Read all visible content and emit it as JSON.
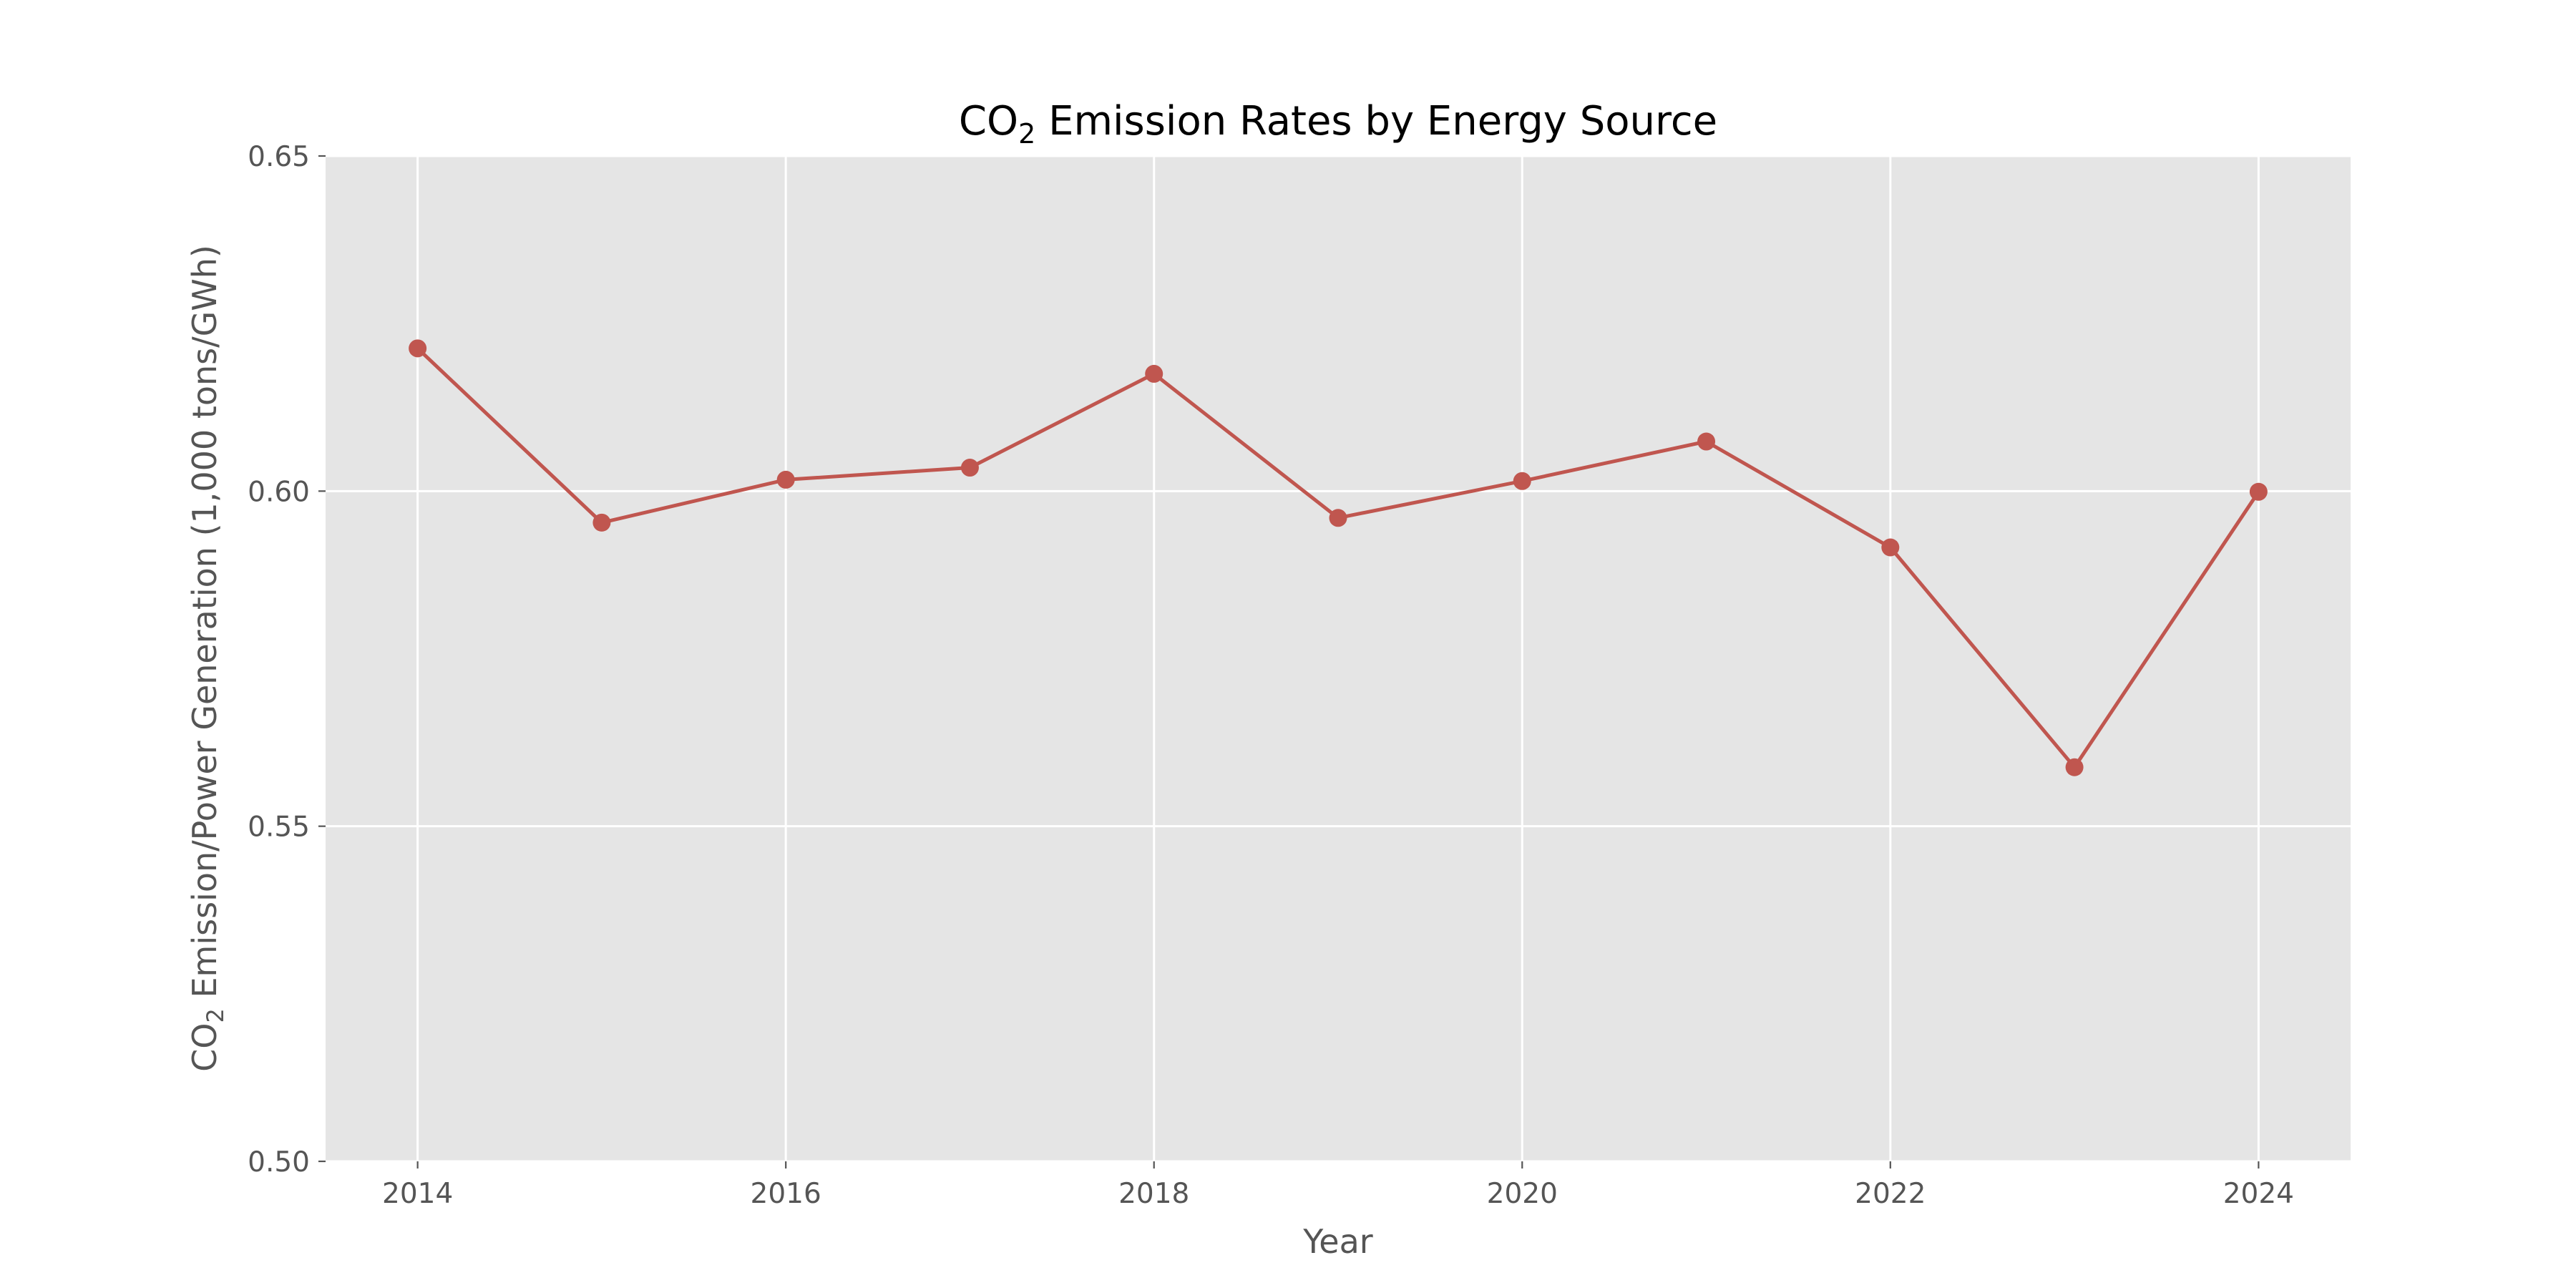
{
  "chart_data": {
    "type": "line",
    "title": "CO₂ Emission Rates by Energy Source",
    "title_main": "CO",
    "title_sub": "2",
    "title_rest": " Emission Rates by Energy Source",
    "xlabel": "Year",
    "ylabel": "CO₂ Emission/Power Generation (1,000 tons/GWh)",
    "ylabel_main": "CO",
    "ylabel_sub": "2",
    "ylabel_rest": " Emission/Power Generation (1,000 tons/GWh)",
    "x": [
      2014,
      2015,
      2016,
      2017,
      2018,
      2019,
      2020,
      2021,
      2022,
      2023,
      2024
    ],
    "series": [
      {
        "values": [
          0.6213,
          0.5953,
          0.6017,
          0.6035,
          0.6175,
          0.596,
          0.6015,
          0.6074,
          0.5916,
          0.5588,
          0.5999
        ],
        "color": "#c0564f"
      }
    ],
    "xlim": [
      2013.5,
      2024.5
    ],
    "ylim": [
      0.5,
      0.65
    ],
    "xticks": [
      2014,
      2016,
      2018,
      2020,
      2022,
      2024
    ],
    "xtick_labels": [
      "2014",
      "2016",
      "2018",
      "2020",
      "2022",
      "2024"
    ],
    "yticks": [
      0.5,
      0.55,
      0.6,
      0.65
    ],
    "ytick_labels": [
      "0.50",
      "0.55",
      "0.60",
      "0.65"
    ],
    "grid": true,
    "legend": "none",
    "plot_background": "#e5e5e5"
  }
}
